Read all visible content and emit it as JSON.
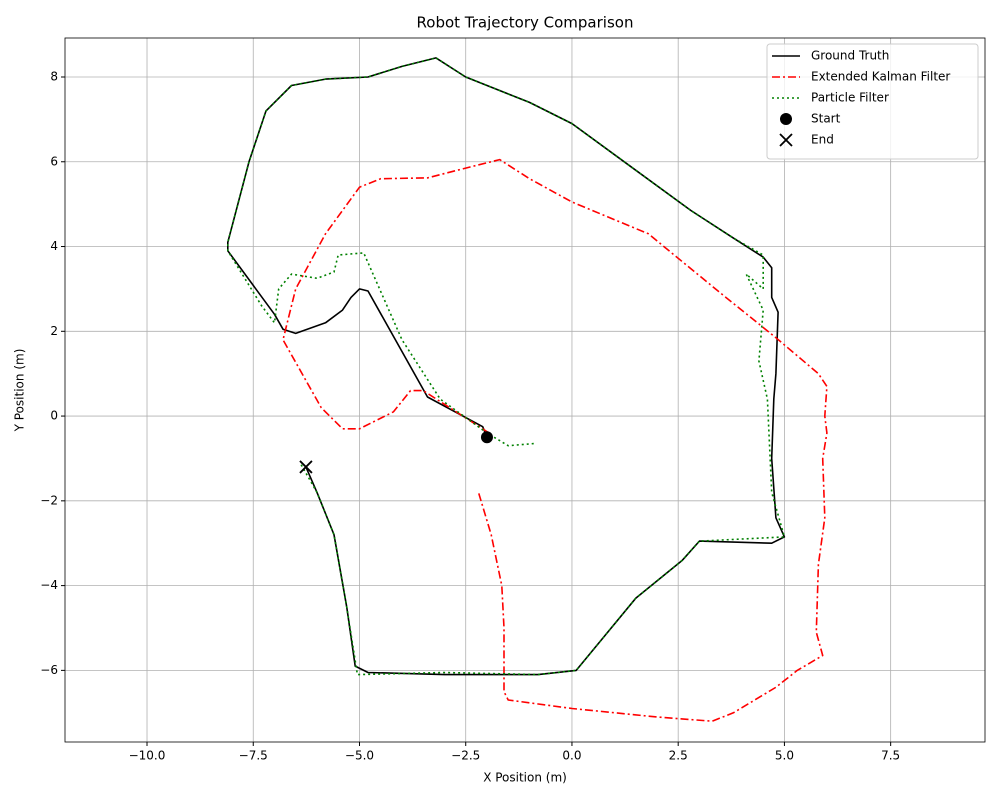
{
  "chart_data": {
    "type": "line",
    "title": "Robot Trajectory Comparison",
    "x_label": "X Position (m)",
    "y_label": "Y Position (m)",
    "xlim": [
      -11.93,
      9.72
    ],
    "ylim": [
      -7.69,
      8.92
    ],
    "xticks": [
      {
        "value": -10,
        "label": "−10.0"
      },
      {
        "value": -7.5,
        "label": "−7.5"
      },
      {
        "value": -5,
        "label": "−5.0"
      },
      {
        "value": -2.5,
        "label": "−2.5"
      },
      {
        "value": 0,
        "label": "0.0"
      },
      2.5,
      {
        "value": 5,
        "label": "5.0"
      },
      7.5
    ],
    "yticks": [
      {
        "value": -6,
        "label": "−6"
      },
      {
        "value": -4,
        "label": "−4"
      },
      {
        "value": -2,
        "label": "−2"
      },
      0,
      2,
      4,
      6,
      8
    ],
    "grid": true,
    "legend": "upper right",
    "series": [
      {
        "name": "Ground Truth",
        "color": "#000000",
        "linestyle": "solid",
        "x": [
          -2.0,
          -2.1,
          -3.4,
          -4.8,
          -5.0,
          -5.2,
          -5.4,
          -5.8,
          -6.5,
          -6.8,
          -7.0,
          -8.1,
          -8.1,
          -7.6,
          -7.2,
          -6.6,
          -5.8,
          -4.8,
          -4.0,
          -3.2,
          -2.5,
          -1.0,
          0.0,
          1.5,
          2.8,
          3.8,
          4.5,
          4.7,
          4.7,
          4.85,
          4.8,
          4.75,
          4.7,
          4.8,
          5.0,
          4.7,
          3.0,
          2.6,
          1.5,
          0.1,
          -0.8,
          -3.0,
          -4.8,
          -5.1,
          -5.3,
          -5.6,
          -6.0,
          -6.26
        ],
        "values": [
          -0.5,
          -0.25,
          0.45,
          2.95,
          3.0,
          2.8,
          2.5,
          2.2,
          1.95,
          2.05,
          2.4,
          3.9,
          4.1,
          6.0,
          7.2,
          7.8,
          7.95,
          8.0,
          8.25,
          8.45,
          8.0,
          7.4,
          6.9,
          5.8,
          4.85,
          4.2,
          3.75,
          3.5,
          2.8,
          2.45,
          1.0,
          0.4,
          -1.0,
          -2.4,
          -2.85,
          -3.0,
          -2.95,
          -3.4,
          -4.3,
          -6.0,
          -6.1,
          -6.1,
          -6.05,
          -5.9,
          -4.5,
          -2.8,
          -1.8,
          -1.2
        ]
      },
      {
        "name": "Extended Kalman Filter",
        "color": "#ff0000",
        "linestyle": "dashdot",
        "x": [
          -1.95,
          -3.5,
          -3.8,
          -4.2,
          -5.0,
          -5.4,
          -5.9,
          -6.8,
          -6.5,
          -5.8,
          -5.0,
          -4.5,
          -3.4,
          -2.5,
          -1.7,
          -1.0,
          0.0,
          1.8,
          3.5,
          4.8,
          5.8,
          6.0,
          5.95,
          6.0,
          5.9,
          5.95,
          5.8,
          5.75,
          5.9,
          5.3,
          4.8,
          3.8,
          3.3,
          2.0,
          0.0,
          -1.5,
          -1.6,
          -1.6,
          -1.65,
          -1.9,
          -2.2
        ],
        "values": [
          -0.4,
          0.6,
          0.6,
          0.1,
          -0.3,
          -0.3,
          0.2,
          1.8,
          3.0,
          4.3,
          5.4,
          5.6,
          5.62,
          5.85,
          6.05,
          5.6,
          5.05,
          4.3,
          2.9,
          1.85,
          1.0,
          0.7,
          0.0,
          -0.4,
          -1.0,
          -2.4,
          -3.5,
          -5.1,
          -5.65,
          -6.0,
          -6.4,
          -7.0,
          -7.2,
          -7.1,
          -6.9,
          -6.7,
          -6.5,
          -5.0,
          -4.0,
          -2.8,
          -1.8
        ]
      },
      {
        "name": "Particle Filter",
        "color": "#008000",
        "linestyle": "dotted",
        "x": [
          -0.9,
          -1.5,
          -2.0,
          -3.1,
          -4.0,
          -4.9,
          -5.5,
          -5.6,
          -6.0,
          -6.6,
          -6.9,
          -7.0,
          -7.3,
          -8.1,
          -8.1,
          -7.6,
          -7.2,
          -6.6,
          -5.8,
          -4.8,
          -4.0,
          -3.2,
          -2.5,
          -1.0,
          0.0,
          1.5,
          2.8,
          3.8,
          4.5,
          4.5,
          4.1,
          4.5,
          4.4,
          4.6,
          4.7,
          5.0,
          3.0,
          2.6,
          1.5,
          0.1,
          -0.8,
          -3.0,
          -5.05,
          -5.3,
          -5.6,
          -6.0,
          -6.4
        ],
        "values": [
          -0.65,
          -0.7,
          -0.4,
          0.4,
          1.8,
          3.85,
          3.8,
          3.4,
          3.25,
          3.35,
          3.0,
          2.2,
          2.6,
          3.9,
          4.1,
          6.0,
          7.2,
          7.8,
          7.95,
          8.0,
          8.25,
          8.45,
          8.0,
          7.4,
          6.9,
          5.8,
          4.85,
          4.2,
          3.8,
          3.0,
          3.35,
          2.5,
          1.3,
          0.4,
          -1.8,
          -2.85,
          -2.95,
          -3.4,
          -4.3,
          -6.0,
          -6.1,
          -6.05,
          -6.1,
          -4.5,
          -2.8,
          -1.8,
          -1.1
        ]
      },
      {
        "name": "Start",
        "color": "#000000",
        "marker": "o",
        "x": [
          -2.0
        ],
        "values": [
          -0.5
        ]
      },
      {
        "name": "End",
        "color": "#000000",
        "marker": "x",
        "x": [
          -6.26
        ],
        "values": [
          -1.2
        ]
      }
    ]
  }
}
